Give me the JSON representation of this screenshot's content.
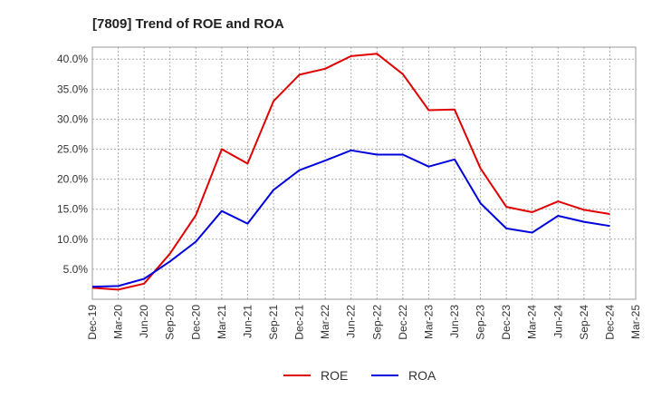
{
  "chart_data": {
    "type": "line",
    "title": "[7809]  Trend of ROE and ROA",
    "x": [
      "Dec-19",
      "Mar-20",
      "Jun-20",
      "Sep-20",
      "Dec-20",
      "Mar-21",
      "Jun-21",
      "Sep-21",
      "Dec-21",
      "Mar-22",
      "Jun-22",
      "Sep-22",
      "Dec-22",
      "Mar-23",
      "Jun-23",
      "Sep-23",
      "Dec-23",
      "Mar-24",
      "Jun-24",
      "Sep-24",
      "Dec-24",
      "Mar-25"
    ],
    "xlabel": "",
    "ylabel": "",
    "ylim": [
      0,
      42
    ],
    "yticks": [
      5,
      10,
      15,
      20,
      25,
      30,
      35,
      40
    ],
    "ytick_labels": [
      "5.0%",
      "10.0%",
      "15.0%",
      "20.0%",
      "25.0%",
      "30.0%",
      "35.0%",
      "40.0%"
    ],
    "grid": true,
    "legend_position": "bottom-center",
    "series": [
      {
        "name": "ROE",
        "color": "#e00000",
        "values": [
          1.9,
          1.6,
          2.6,
          7.6,
          14.0,
          25.0,
          22.6,
          33.0,
          37.4,
          38.4,
          40.5,
          40.9,
          37.5,
          31.5,
          31.6,
          21.8,
          15.4,
          14.5,
          16.3,
          14.9,
          14.2,
          null
        ]
      },
      {
        "name": "ROA",
        "color": "#0000dd",
        "values": [
          2.1,
          2.2,
          3.4,
          6.3,
          9.6,
          14.7,
          12.6,
          18.2,
          21.5,
          23.1,
          24.8,
          24.1,
          24.1,
          22.1,
          23.3,
          16.0,
          11.8,
          11.1,
          13.9,
          12.9,
          12.2,
          null
        ]
      }
    ]
  }
}
